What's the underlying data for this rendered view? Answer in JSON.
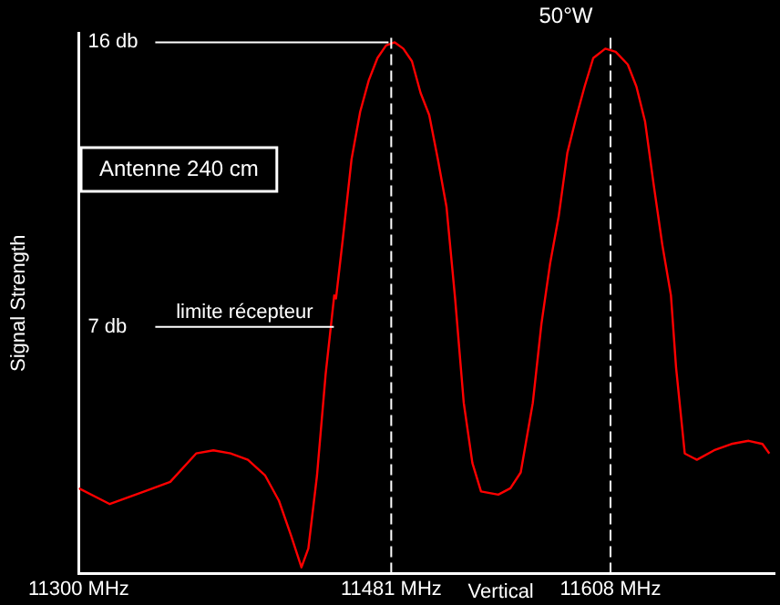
{
  "chart_data": {
    "type": "line",
    "title": "50°W",
    "ylabel": "Signal Strength",
    "x": [
      11300,
      11318,
      11338,
      11353,
      11368,
      11378,
      11388,
      11398,
      11408,
      11416,
      11423,
      11429,
      11433,
      11438,
      11443,
      11448,
      11449,
      11453,
      11458,
      11463,
      11468,
      11473,
      11478,
      11483,
      11488,
      11493,
      11498,
      11503,
      11508,
      11513,
      11518,
      11523,
      11528,
      11533,
      11543,
      11550,
      11556,
      11563,
      11568,
      11573,
      11578,
      11583,
      11588,
      11593,
      11598,
      11605,
      11611,
      11618,
      11623,
      11628,
      11633,
      11638,
      11643,
      11646,
      11651,
      11658,
      11668,
      11678,
      11688,
      11696,
      11700
    ],
    "series": [
      {
        "color": "#ff0000",
        "values": [
          1.9,
          1.4,
          1.8,
          2.1,
          3.0,
          3.1,
          3.0,
          2.8,
          2.3,
          1.5,
          0.4,
          -0.6,
          0.0,
          2.3,
          5.5,
          8.0,
          7.9,
          9.8,
          12.3,
          13.8,
          14.8,
          15.5,
          15.9,
          16.0,
          15.8,
          15.4,
          14.4,
          13.7,
          12.3,
          10.8,
          7.9,
          4.6,
          2.7,
          1.8,
          1.7,
          1.9,
          2.4,
          4.6,
          7.1,
          9.0,
          10.5,
          12.5,
          13.6,
          14.6,
          15.5,
          15.8,
          15.7,
          15.3,
          14.6,
          13.5,
          11.5,
          9.6,
          8.0,
          5.7,
          3.0,
          2.8,
          3.1,
          3.3,
          3.4,
          3.3,
          3.0
        ]
      }
    ],
    "xlim": [
      11300,
      11703
    ],
    "ylim": [
      -0.8,
      16.3
    ],
    "xticks": [
      {
        "value": 11300,
        "label": "11300 MHz"
      },
      {
        "value": 11481,
        "label": "11481 MHz"
      },
      {
        "value": 11608,
        "label": "11608 MHz"
      }
    ],
    "yticks": [
      {
        "value": 16,
        "label": "16 db"
      },
      {
        "value": 7,
        "label": "7 db"
      }
    ],
    "ref_lines": [
      {
        "axis": "y",
        "value": 16,
        "color": "#ffffff",
        "line_style": "solid"
      },
      {
        "axis": "y",
        "value": 7,
        "label": "limite récepteur",
        "color": "#ffffff",
        "line_style": "solid"
      },
      {
        "axis": "x",
        "value": 11481,
        "color": "#ffffff",
        "line_style": "dashed"
      },
      {
        "axis": "x",
        "value": 11608,
        "color": "#ffffff",
        "line_style": "dashed"
      }
    ],
    "annotations": [
      "Antenne 240 cm",
      "Vertical"
    ],
    "grid": false,
    "legend": false,
    "marker": "none",
    "line_style": "solid"
  }
}
